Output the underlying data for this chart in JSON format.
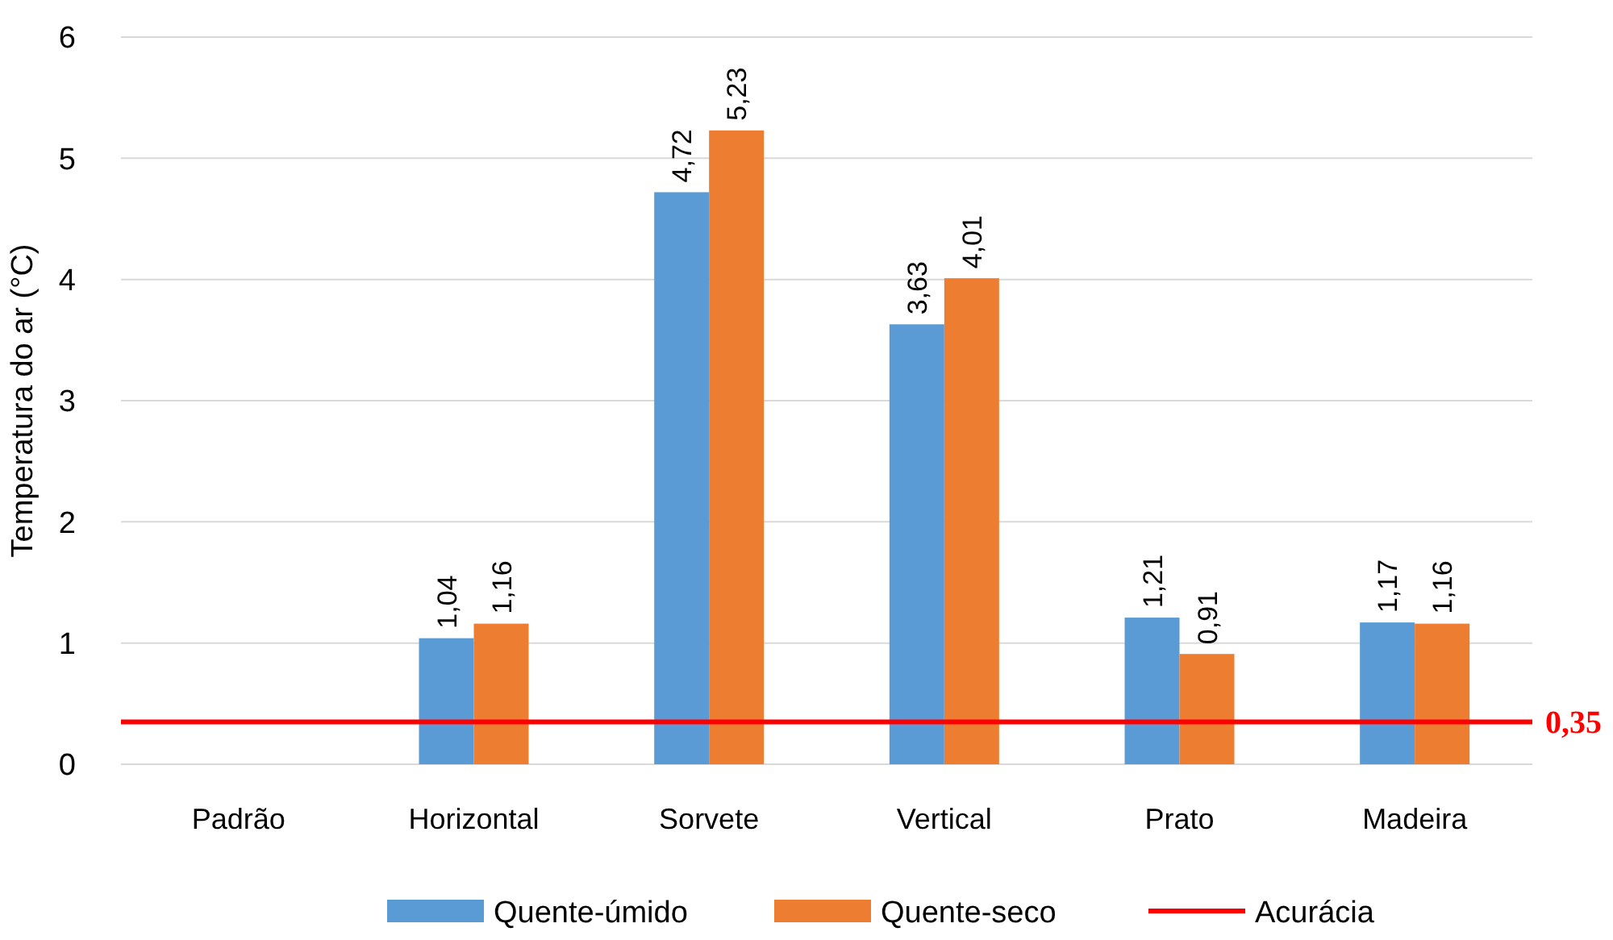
{
  "chart_data": {
    "type": "bar",
    "ylabel": "Temperatura do ar (°C)",
    "categories": [
      "Padrão",
      "Horizontal",
      "Sorvete",
      "Vertical",
      "Prato",
      "Madeira"
    ],
    "series": [
      {
        "name": "Quente-úmido",
        "color": "#5b9bd5",
        "values": [
          null,
          1.04,
          4.72,
          3.63,
          1.21,
          1.17
        ],
        "value_labels": [
          null,
          "1,04",
          "4,72",
          "3,63",
          "1,21",
          "1,17"
        ]
      },
      {
        "name": "Quente-seco",
        "color": "#ed7d31",
        "values": [
          null,
          1.16,
          5.23,
          4.01,
          0.91,
          1.16
        ],
        "value_labels": [
          null,
          "1,16",
          "5,23",
          "4,01",
          "0,91",
          "1,16"
        ]
      }
    ],
    "ylim": [
      0,
      6
    ],
    "yticks": [
      0,
      1,
      2,
      3,
      4,
      5,
      6
    ],
    "grid": "y",
    "legend": "bottom",
    "ref_lines": [
      {
        "axis": "y",
        "value": 0.35,
        "label": "Acurácia",
        "color": "#ff0000",
        "line_style": "solid"
      }
    ],
    "annotations": [
      "0,35"
    ]
  }
}
